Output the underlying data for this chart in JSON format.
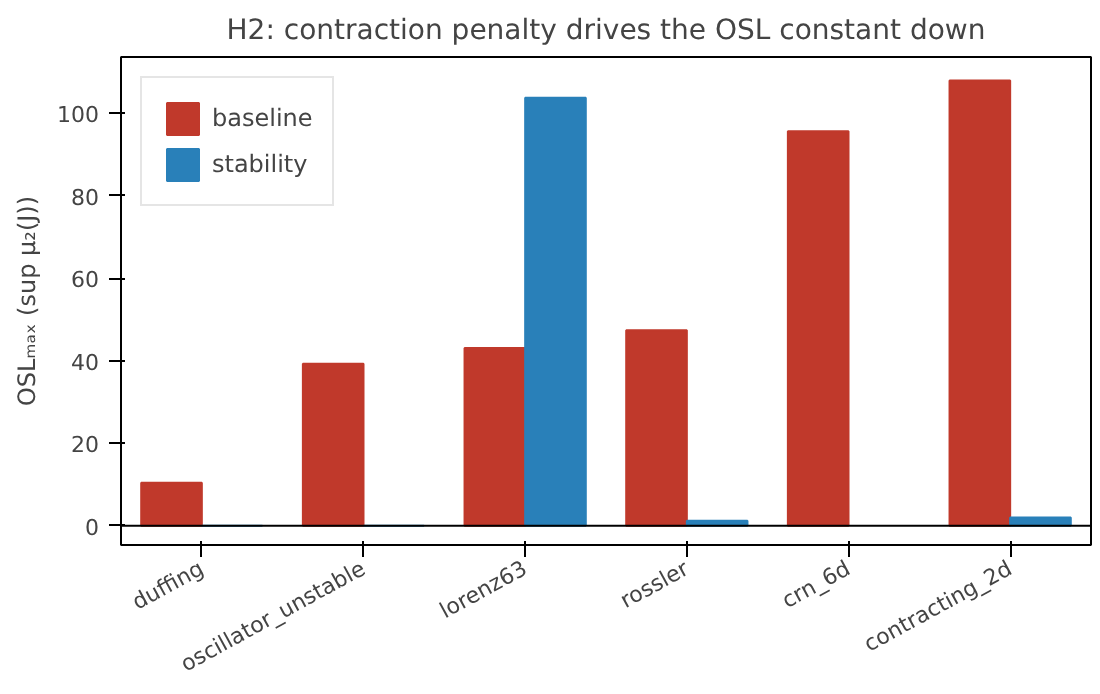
{
  "chart_data": {
    "type": "bar",
    "title": "H2: contraction penalty drives the OSL constant down",
    "ylabel": "OSLₘₐₓ (sup μ₂(J))",
    "categories": [
      "duffing",
      "oscillator_unstable",
      "lorenz63",
      "rossler",
      "crn_6d",
      "contracting_2d"
    ],
    "series": [
      {
        "name": "baseline",
        "color": "#c0392b",
        "values": [
          10.4,
          39.3,
          43.1,
          47.4,
          95.7,
          108.0
        ]
      },
      {
        "name": "stability",
        "color": "#2980b9",
        "values": [
          0,
          0,
          103.8,
          1.2,
          null,
          2.0
        ]
      }
    ],
    "ylim": [
      -4.7,
      113.7
    ],
    "yticks": [
      0,
      20,
      40,
      60,
      80,
      100
    ],
    "ref_lines": [
      {
        "axis": "y",
        "value": 0,
        "color": "#000000"
      }
    ],
    "legend": "top left",
    "grid": false
  }
}
